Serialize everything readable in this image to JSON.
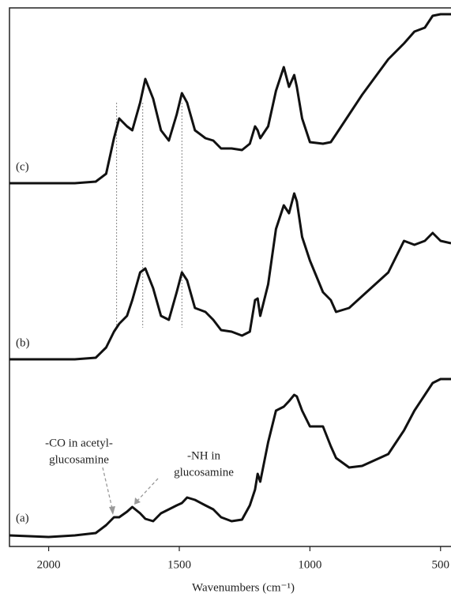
{
  "chart_data": {
    "type": "line",
    "x_label": "Wavenumbers (cm⁻¹)",
    "x": [
      2150,
      2000,
      1900,
      1820,
      1780,
      1750,
      1730,
      1700,
      1680,
      1650,
      1630,
      1600,
      1570,
      1540,
      1510,
      1490,
      1470,
      1440,
      1400,
      1370,
      1340,
      1300,
      1260,
      1230,
      1210,
      1200,
      1190,
      1160,
      1130,
      1100,
      1080,
      1060,
      1050,
      1030,
      1000,
      950,
      920,
      900,
      850,
      800,
      700,
      640,
      600,
      560,
      530,
      500,
      460
    ],
    "series": [
      {
        "name": "(a)",
        "color": "#111111",
        "values": [
          14,
          12,
          14,
          17,
          27,
          37,
          37,
          44,
          50,
          42,
          35,
          32,
          42,
          47,
          52,
          55,
          62,
          59,
          52,
          47,
          37,
          32,
          34,
          52,
          72,
          92,
          82,
          132,
          172,
          177,
          184,
          192,
          190,
          172,
          152,
          152,
          127,
          112,
          100,
          102,
          117,
          147,
          172,
          192,
          207,
          212,
          212
        ]
      },
      {
        "name": "(b)",
        "color": "#111111",
        "values": [
          237,
          237,
          237,
          239,
          252,
          272,
          282,
          292,
          312,
          347,
          352,
          327,
          292,
          287,
          322,
          347,
          337,
          302,
          297,
          287,
          274,
          272,
          267,
          272,
          312,
          314,
          292,
          332,
          402,
          432,
          422,
          447,
          437,
          392,
          362,
          322,
          312,
          297,
          302,
          317,
          347,
          387,
          382,
          387,
          397,
          387,
          384
        ]
      },
      {
        "name": "(c)",
        "color": "#111111",
        "values": [
          460,
          460,
          460,
          462,
          472,
          517,
          542,
          532,
          527,
          562,
          592,
          567,
          527,
          514,
          547,
          574,
          562,
          527,
          517,
          514,
          504,
          504,
          502,
          510,
          532,
          527,
          517,
          532,
          577,
          607,
          582,
          597,
          582,
          542,
          512,
          510,
          512,
          522,
          547,
          572,
          617,
          637,
          652,
          657,
          672,
          674,
          674
        ]
      }
    ],
    "xlim": [
      2150,
      460
    ],
    "xticks": [
      2000,
      1500,
      1000,
      500
    ],
    "ylim": [
      0,
      682
    ],
    "reference_lines": [
      1740,
      1640,
      1490
    ],
    "annotations": [
      {
        "text": [
          "-CO in acetyl-",
          "glucosamine"
        ]
      },
      {
        "text": [
          "-NH in",
          "glucosamine"
        ]
      }
    ]
  }
}
